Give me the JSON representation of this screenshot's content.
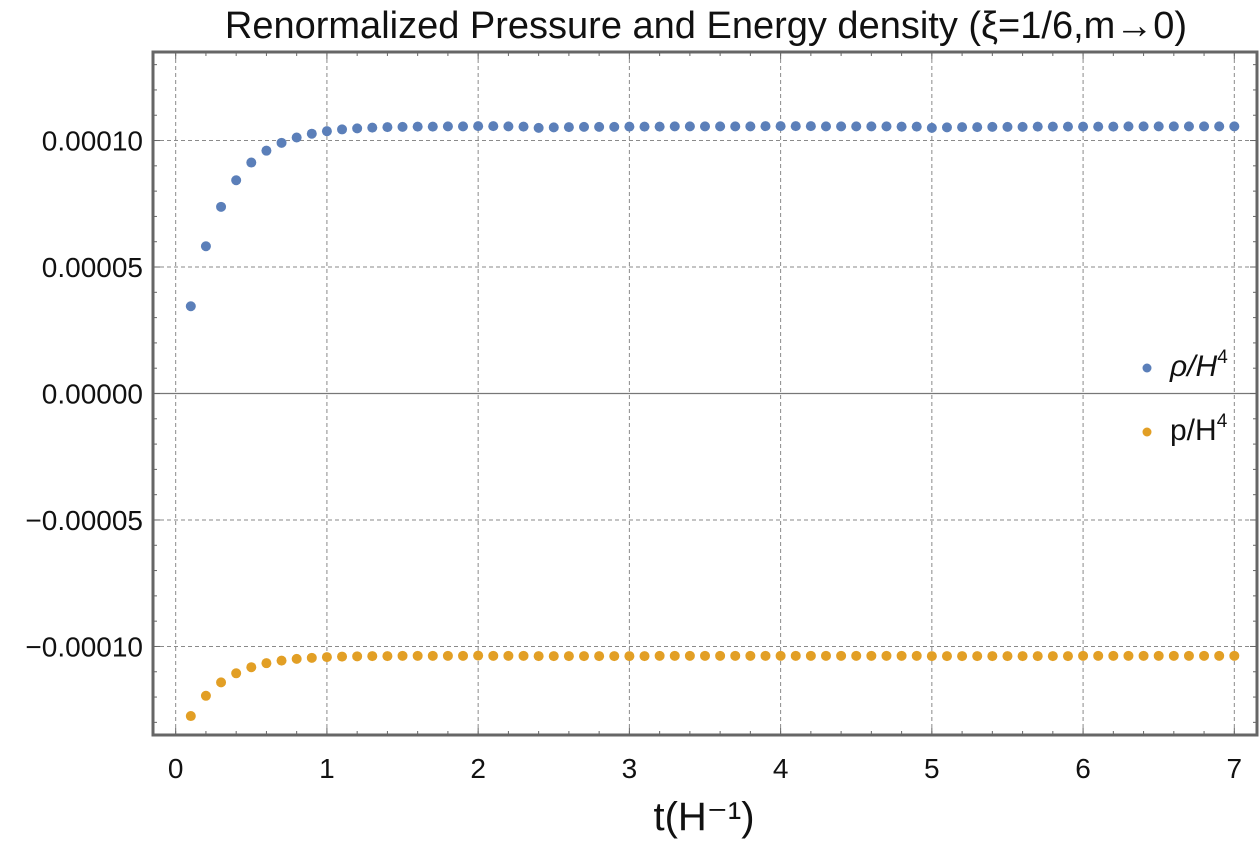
{
  "chart_data": {
    "type": "scatter",
    "title": "Renormalized Pressure and Energy density (ξ=1/6,m→0)",
    "xlabel": "t(H⁻¹)",
    "ylabel": "",
    "xlim": [
      -0.15,
      7.15
    ],
    "ylim": [
      -0.000135,
      0.000135
    ],
    "grid": true,
    "legend_position": "right",
    "x_ticks": [
      {
        "value": 0,
        "label": "0"
      },
      {
        "value": 1,
        "label": "1"
      },
      {
        "value": 2,
        "label": "2"
      },
      {
        "value": 3,
        "label": "3"
      },
      {
        "value": 4,
        "label": "4"
      },
      {
        "value": 5,
        "label": "5"
      },
      {
        "value": 6,
        "label": "6"
      },
      {
        "value": 7,
        "label": "7"
      }
    ],
    "y_ticks": [
      {
        "value": 0.0001,
        "label": "0.00010"
      },
      {
        "value": 5e-05,
        "label": "0.00005"
      },
      {
        "value": 0,
        "label": "0.00000"
      },
      {
        "value": -5e-05,
        "label": "−0.00005"
      },
      {
        "value": -0.0001,
        "label": "−0.00010"
      }
    ],
    "series": [
      {
        "name": "ρ/H⁴",
        "legend_main": "ρ/H",
        "legend_sup": "4",
        "color": "#5b7fb9",
        "x_start": 0.1,
        "x_step": 0.1,
        "values": [
          3.45e-05,
          5.82e-05,
          7.38e-05,
          8.43e-05,
          9.13e-05,
          9.6e-05,
          9.91e-05,
          0.0001012,
          0.0001027,
          0.0001037,
          0.0001044,
          0.0001048,
          0.0001051,
          0.0001053,
          0.0001054,
          0.0001055,
          0.0001055,
          0.0001056,
          0.0001056,
          0.0001057,
          0.0001057,
          0.0001056,
          0.0001055,
          0.000105,
          0.0001052,
          0.0001053,
          0.0001054,
          0.0001054,
          0.0001054,
          0.0001055,
          0.0001055,
          0.0001055,
          0.0001056,
          0.0001056,
          0.0001056,
          0.0001056,
          0.0001056,
          0.0001056,
          0.0001057,
          0.0001057,
          0.0001057,
          0.0001057,
          0.0001056,
          0.0001056,
          0.0001056,
          0.0001056,
          0.0001056,
          0.0001055,
          0.0001055,
          0.000105,
          0.0001052,
          0.0001053,
          0.0001053,
          0.0001054,
          0.0001054,
          0.0001054,
          0.0001055,
          0.0001055,
          0.0001055,
          0.0001055,
          0.0001055,
          0.0001055,
          0.0001056,
          0.0001056,
          0.0001056,
          0.0001056,
          0.0001056,
          0.0001056,
          0.0001056,
          0.0001056
        ]
      },
      {
        "name": "p/H⁴",
        "legend_main": "p/H",
        "legend_sup": "4",
        "color": "#e29f25",
        "x_start": 0.1,
        "x_step": 0.1,
        "values": [
          -0.0001275,
          -0.0001195,
          -0.0001142,
          -0.0001106,
          -0.0001082,
          -0.0001066,
          -0.0001056,
          -0.0001049,
          -0.0001045,
          -0.0001042,
          -0.000104,
          -0.0001039,
          -0.0001038,
          -0.0001038,
          -0.0001037,
          -0.0001037,
          -0.0001037,
          -0.0001037,
          -0.0001037,
          -0.0001036,
          -0.0001037,
          -0.0001037,
          -0.0001037,
          -0.0001038,
          -0.0001038,
          -0.0001038,
          -0.0001038,
          -0.0001038,
          -0.0001038,
          -0.0001038,
          -0.0001038,
          -0.0001037,
          -0.0001037,
          -0.0001037,
          -0.0001037,
          -0.0001037,
          -0.0001037,
          -0.0001037,
          -0.0001037,
          -0.0001037,
          -0.0001037,
          -0.0001037,
          -0.0001037,
          -0.0001037,
          -0.0001037,
          -0.0001037,
          -0.0001037,
          -0.0001037,
          -0.0001037,
          -0.0001038,
          -0.0001038,
          -0.0001038,
          -0.0001038,
          -0.0001038,
          -0.0001038,
          -0.0001038,
          -0.0001038,
          -0.0001038,
          -0.0001038,
          -0.0001037,
          -0.0001037,
          -0.0001037,
          -0.0001037,
          -0.0001037,
          -0.0001037,
          -0.0001037,
          -0.0001037,
          -0.0001037,
          -0.0001037,
          -0.0001037
        ]
      }
    ]
  }
}
